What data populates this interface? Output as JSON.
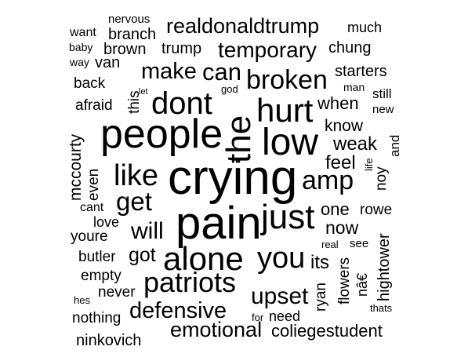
{
  "words": [
    "crying",
    "pain",
    "people",
    "the",
    "low",
    "alone",
    "just",
    "hurt",
    "dont",
    "patriots",
    "broken",
    "like",
    "you",
    "amp",
    "get",
    "upset",
    "defensive",
    "emotional",
    "temporary",
    "will",
    "make",
    "can",
    "realdonaldtrump",
    "got",
    "weak",
    "know",
    "feel",
    "when",
    "its",
    "now",
    "one",
    "coliegestudent",
    "mccourty",
    "brown",
    "branch",
    "trump",
    "chung",
    "starters",
    "need",
    "nothing",
    "ninkovich",
    "never",
    "empty",
    "butler",
    "youre",
    "love",
    "cant",
    "even",
    "afraid",
    "back",
    "van",
    "way",
    "baby",
    "want",
    "nervous",
    "much",
    "god",
    "let",
    "this",
    "man",
    "still",
    "new",
    "and",
    "life",
    "noy",
    "rowe",
    "see",
    "real",
    "nâ€",
    "ryan",
    "flowers",
    "hightower",
    "thats",
    "for",
    "hes"
  ]
}
